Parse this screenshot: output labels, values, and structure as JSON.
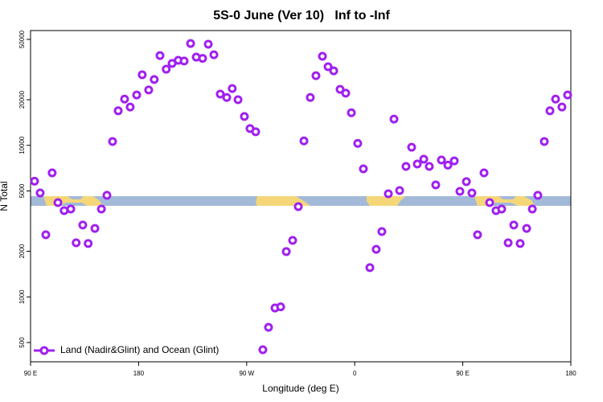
{
  "chart_data": {
    "type": "scatter",
    "title": "5S-0 June (Ver 10)   Inf to -Inf",
    "xlabel": "Longitude (deg E)",
    "ylabel": "N Total",
    "xlim": [
      90,
      540
    ],
    "xticks": [
      {
        "value": 90,
        "label": "90 E"
      },
      180,
      {
        "value": 270,
        "label": "90 W"
      },
      {
        "value": 360,
        "label": "0"
      },
      {
        "value": 450,
        "label": "90 E"
      },
      {
        "value": 540,
        "label": "180"
      }
    ],
    "ylim": [
      373,
      57200
    ],
    "yticks": [
      500,
      1000,
      2000,
      5000,
      10000,
      20000,
      50000
    ],
    "ylog": true,
    "legend": "bottom-left",
    "x": [
      93.3,
      98,
      102.7,
      108,
      112.8,
      118,
      123.5,
      128,
      133.5,
      138,
      143.6,
      149,
      153.6,
      158.3,
      163,
      168.3,
      173,
      178.4,
      183,
      188.4,
      193,
      197.8,
      203,
      207.9,
      213,
      217.9,
      223.3,
      228,
      233.3,
      238,
      242.7,
      248,
      253.4,
      258,
      262.8,
      268.1,
      272.8,
      277.5,
      283.5,
      288.2,
      293.6,
      298.3,
      303,
      308.3,
      313,
      317.7,
      323,
      327.7,
      333.1,
      337.8,
      342.5,
      347.8,
      352.5,
      357.2,
      362.5,
      367.2,
      372.6,
      377.9,
      382.6,
      388,
      392.7,
      397.4,
      402.7,
      407.4,
      412.1,
      417.5,
      422.1,
      427.5,
      432.2,
      437.6,
      442.9,
      447.6,
      453,
      457.6,
      462.3,
      467.7,
      472.4,
      477.7,
      482.4,
      487.8,
      492.5,
      497.8,
      503.2,
      507.9,
      512.5,
      517.9,
      522.6,
      527.3,
      532.6,
      537.3
    ],
    "series": [
      {
        "name": "Land (Nadir&Glint) and Ocean (Glint)",
        "color": "#a020f0",
        "values": [
          5800,
          4850,
          2570,
          6580,
          4190,
          3710,
          3800,
          2275,
          2980,
          2250,
          2830,
          3800,
          4680,
          10600,
          16900,
          20200,
          17900,
          21500,
          29200,
          23200,
          27200,
          39100,
          31800,
          34700,
          36400,
          36000,
          47000,
          38200,
          37500,
          46500,
          39600,
          21800,
          20700,
          23700,
          20000,
          15500,
          12900,
          12300,
          448,
          630,
          845,
          860,
          1990,
          2360,
          3940,
          10700,
          20700,
          28800,
          38700,
          33000,
          31000,
          23400,
          22100,
          16400,
          10300,
          7000,
          1560,
          2060,
          2700,
          4790,
          14900,
          5030,
          7260,
          9720,
          7530,
          8100,
          7260,
          5480,
          8000,
          7400,
          7900,
          4970,
          5760,
          4850,
          2570,
          6580,
          4190,
          3710,
          3800,
          2275,
          2980,
          2250,
          2830,
          3800,
          4680,
          10600,
          16900,
          20200,
          17900,
          21500
        ]
      }
    ]
  }
}
